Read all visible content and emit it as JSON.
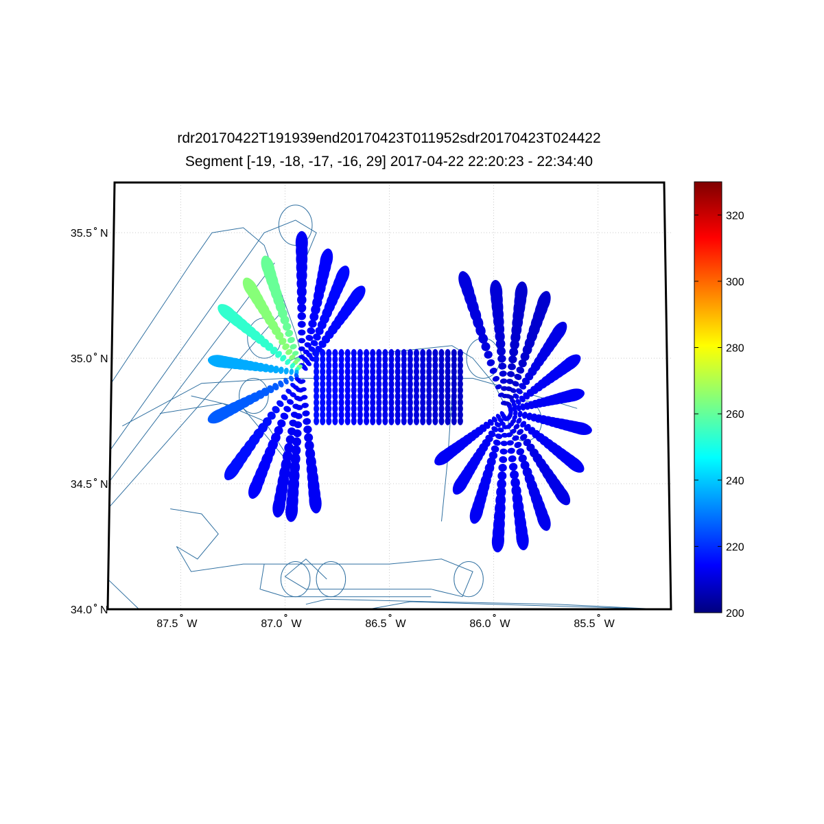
{
  "chart_data": {
    "type": "map",
    "title_line1": "rdr20170422T191939end20170423T011952sdr20170423T024422",
    "title_line2": "Segment [-19, -18, -17, -16, 29] 2017-04-22 22:20:23 - 22:34:40",
    "lon_range": [
      -87.85,
      -85.15
    ],
    "lat_range": [
      34.0,
      35.7
    ],
    "lon_ticks": [
      {
        "value": -87.5,
        "label": "87.5",
        "hemi": "W"
      },
      {
        "value": -87.0,
        "label": "87.0",
        "hemi": "W"
      },
      {
        "value": -86.5,
        "label": "86.5",
        "hemi": "W"
      },
      {
        "value": -86.0,
        "label": "86.0",
        "hemi": "W"
      },
      {
        "value": -85.5,
        "label": "85.5",
        "hemi": "W"
      }
    ],
    "lat_ticks": [
      {
        "value": 35.5,
        "label": "35.5",
        "hemi": "N"
      },
      {
        "value": 35.0,
        "label": "35.0",
        "hemi": "N"
      },
      {
        "value": 34.5,
        "label": "34.5",
        "hemi": "N"
      },
      {
        "value": 34.0,
        "label": "34.0",
        "hemi": "N"
      }
    ],
    "grid": true,
    "colorbar": {
      "min": 200,
      "max": 330,
      "ticks": [
        200,
        220,
        240,
        260,
        280,
        300,
        320
      ],
      "colormap": "jet",
      "placement": "right"
    },
    "stars": [
      {
        "center": [
          -86.92,
          34.94
        ],
        "rays": [
          {
            "angle": 90,
            "len": 0.52,
            "value": 215
          },
          {
            "angle": 70,
            "len": 0.48,
            "value": 216
          },
          {
            "angle": 55,
            "len": 0.47,
            "value": 217
          },
          {
            "angle": 40,
            "len": 0.48,
            "value": 217
          },
          {
            "angle": 118,
            "len": 0.48,
            "value": 262
          },
          {
            "angle": 135,
            "len": 0.48,
            "value": 266
          },
          {
            "angle": 154,
            "len": 0.55,
            "value": 255
          },
          {
            "angle": 175,
            "len": 0.55,
            "value": 238
          },
          {
            "angle": 197,
            "len": 0.58,
            "value": 228
          },
          {
            "angle": 220,
            "len": 0.6,
            "value": 218
          },
          {
            "angle": 236,
            "len": 0.55,
            "value": 216
          },
          {
            "angle": 254,
            "len": 0.55,
            "value": 215
          },
          {
            "angle": 263,
            "len": 0.55,
            "value": 215
          },
          {
            "angle": 280,
            "len": 0.52,
            "value": 215
          }
        ]
      },
      {
        "center": [
          -85.94,
          34.79
        ],
        "rays": [
          {
            "angle": 118,
            "len": 0.58,
            "value": 212
          },
          {
            "angle": 98,
            "len": 0.48,
            "value": 211
          },
          {
            "angle": 78,
            "len": 0.48,
            "value": 210
          },
          {
            "angle": 60,
            "len": 0.5,
            "value": 210
          },
          {
            "angle": 42,
            "len": 0.47,
            "value": 213
          },
          {
            "angle": 24,
            "len": 0.47,
            "value": 215
          },
          {
            "angle": 8,
            "len": 0.45,
            "value": 215
          },
          {
            "angle": -8,
            "len": 0.5,
            "value": 215
          },
          {
            "angle": -25,
            "len": 0.5,
            "value": 215
          },
          {
            "angle": -42,
            "len": 0.5,
            "value": 213
          },
          {
            "angle": -60,
            "len": 0.5,
            "value": 214
          },
          {
            "angle": -78,
            "len": 0.52,
            "value": 215
          },
          {
            "angle": -96,
            "len": 0.52,
            "value": 215
          },
          {
            "angle": -116,
            "len": 0.45,
            "value": 215
          },
          {
            "angle": -136,
            "len": 0.42,
            "value": 215
          },
          {
            "angle": -156,
            "len": 0.45,
            "value": 215
          }
        ]
      }
    ],
    "grid_block": {
      "lon": [
        -86.85,
        -86.16
      ],
      "lat": [
        34.74,
        35.02
      ],
      "columns": 24,
      "value_west": 218,
      "value_east": 209
    },
    "tracks": [
      [
        [
          -87.85,
          34.88
        ],
        [
          -87.45,
          35.38
        ],
        [
          -87.35,
          35.5
        ],
        [
          -87.2,
          35.52
        ],
        [
          -87.1,
          35.45
        ],
        [
          -86.95,
          35.1
        ],
        [
          -86.9,
          34.95
        ]
      ],
      [
        [
          -87.85,
          34.62
        ],
        [
          -87.1,
          35.5
        ],
        [
          -86.95,
          35.55
        ],
        [
          -86.85,
          35.5
        ],
        [
          -86.9,
          35.4
        ]
      ],
      [
        [
          -87.85,
          34.5
        ],
        [
          -87.05,
          35.38
        ]
      ],
      [
        [
          -87.85,
          34.4
        ],
        [
          -87.0,
          35.2
        ]
      ],
      [
        [
          -87.78,
          34.73
        ],
        [
          -87.4,
          34.9
        ],
        [
          -87.0,
          34.92
        ],
        [
          -86.5,
          34.92
        ],
        [
          -86.1,
          34.92
        ],
        [
          -85.8,
          34.85
        ],
        [
          -85.6,
          34.8
        ]
      ],
      [
        [
          -87.0,
          34.98
        ],
        [
          -86.9,
          35.02
        ],
        [
          -86.55,
          35.02
        ],
        [
          -86.2,
          35.05
        ],
        [
          -86.1,
          35.0
        ],
        [
          -86.0,
          34.9
        ],
        [
          -85.95,
          34.82
        ]
      ],
      [
        [
          -86.2,
          34.85
        ],
        [
          -86.22,
          34.6
        ],
        [
          -86.25,
          34.35
        ]
      ],
      [
        [
          -87.55,
          34.4
        ],
        [
          -87.4,
          34.38
        ],
        [
          -87.32,
          34.3
        ],
        [
          -87.42,
          34.2
        ],
        [
          -87.52,
          34.25
        ],
        [
          -87.45,
          34.15
        ],
        [
          -87.2,
          34.18
        ],
        [
          -86.5,
          34.18
        ],
        [
          -86.25,
          34.2
        ],
        [
          -86.1,
          34.15
        ],
        [
          -86.15,
          34.05
        ],
        [
          -86.3,
          34.08
        ],
        [
          -86.9,
          34.08
        ],
        [
          -87.0,
          34.13
        ],
        [
          -86.9,
          34.2
        ],
        [
          -86.8,
          34.12
        ]
      ],
      [
        [
          -87.1,
          34.18
        ],
        [
          -87.12,
          34.08
        ],
        [
          -87.0,
          34.05
        ],
        [
          -86.6,
          34.05
        ],
        [
          -86.3,
          34.05
        ]
      ],
      [
        [
          -86.9,
          34.02
        ],
        [
          -86.8,
          34.04
        ],
        [
          -86.3,
          34.03
        ],
        [
          -85.7,
          34.02
        ],
        [
          -85.2,
          34.0
        ]
      ],
      [
        [
          -87.85,
          34.12
        ],
        [
          -87.7,
          34.0
        ]
      ],
      [
        [
          -86.6,
          34.0
        ],
        [
          -86.4,
          34.03
        ],
        [
          -86.0,
          34.02
        ],
        [
          -85.6,
          34.01
        ],
        [
          -85.2,
          34.0
        ]
      ],
      [
        [
          -87.45,
          34.85
        ],
        [
          -87.2,
          34.8
        ],
        [
          -87.05,
          34.65
        ],
        [
          -86.95,
          34.55
        ]
      ],
      [
        [
          -87.6,
          34.78
        ],
        [
          -87.3,
          34.82
        ],
        [
          -87.1,
          34.75
        ],
        [
          -86.98,
          34.6
        ]
      ]
    ],
    "loops": [
      {
        "center": [
          -86.95,
          35.53
        ],
        "r": 0.08
      },
      {
        "center": [
          -87.1,
          35.08
        ],
        "r": 0.08
      },
      {
        "center": [
          -87.15,
          34.85
        ],
        "r": 0.07
      },
      {
        "center": [
          -86.05,
          35.0
        ],
        "r": 0.08
      },
      {
        "center": [
          -85.85,
          34.75
        ],
        "r": 0.08
      },
      {
        "center": [
          -86.12,
          34.12
        ],
        "r": 0.07
      },
      {
        "center": [
          -86.78,
          34.12
        ],
        "r": 0.07
      },
      {
        "center": [
          -86.95,
          34.12
        ],
        "r": 0.07
      }
    ]
  }
}
